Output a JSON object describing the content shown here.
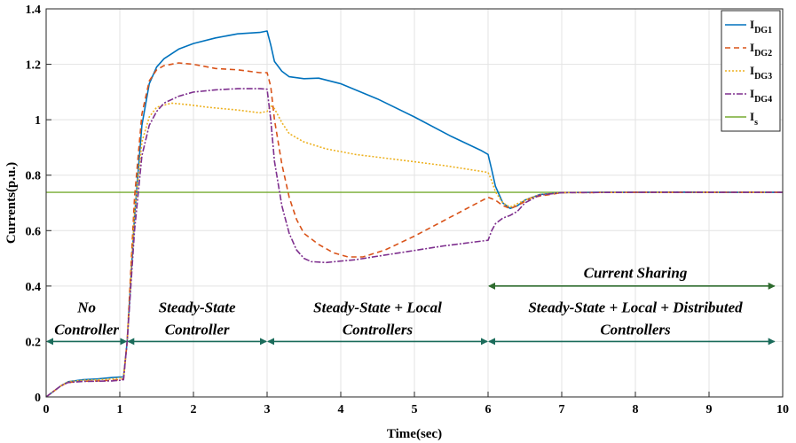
{
  "chart_data": {
    "type": "line",
    "xlabel": "Time(sec)",
    "ylabel": "Currents(p.u.)",
    "xlim": [
      0,
      10
    ],
    "ylim": [
      0,
      1.4
    ],
    "xticks": [
      "0",
      "1",
      "2",
      "3",
      "4",
      "5",
      "6",
      "7",
      "8",
      "9",
      "10"
    ],
    "yticks": [
      "0",
      "0.2",
      "0.4",
      "0.6",
      "0.8",
      "1",
      "1.2",
      "1.4"
    ],
    "grid": true,
    "legend": {
      "placement": "top-right"
    },
    "series": [
      {
        "name": "I",
        "sub": "DG1",
        "color": "#0072BD",
        "dash": "solid",
        "points": [
          [
            0,
            0
          ],
          [
            0.1,
            0.02
          ],
          [
            0.2,
            0.04
          ],
          [
            0.3,
            0.055
          ],
          [
            0.5,
            0.062
          ],
          [
            0.7,
            0.065
          ],
          [
            0.9,
            0.07
          ],
          [
            1.0,
            0.072
          ],
          [
            1.05,
            0.072
          ],
          [
            1.1,
            0.2
          ],
          [
            1.2,
            0.65
          ],
          [
            1.3,
            0.98
          ],
          [
            1.4,
            1.13
          ],
          [
            1.5,
            1.19
          ],
          [
            1.6,
            1.22
          ],
          [
            1.8,
            1.255
          ],
          [
            2.0,
            1.275
          ],
          [
            2.3,
            1.295
          ],
          [
            2.6,
            1.31
          ],
          [
            2.9,
            1.315
          ],
          [
            3.0,
            1.32
          ],
          [
            3.05,
            1.27
          ],
          [
            3.1,
            1.21
          ],
          [
            3.2,
            1.175
          ],
          [
            3.3,
            1.155
          ],
          [
            3.5,
            1.148
          ],
          [
            3.7,
            1.15
          ],
          [
            4.0,
            1.13
          ],
          [
            4.5,
            1.075
          ],
          [
            5.0,
            1.01
          ],
          [
            5.5,
            0.94
          ],
          [
            5.9,
            0.89
          ],
          [
            6.0,
            0.875
          ],
          [
            6.05,
            0.82
          ],
          [
            6.1,
            0.76
          ],
          [
            6.2,
            0.7
          ],
          [
            6.3,
            0.68
          ],
          [
            6.4,
            0.69
          ],
          [
            6.5,
            0.71
          ],
          [
            6.7,
            0.73
          ],
          [
            7.0,
            0.737
          ],
          [
            7.5,
            0.738
          ],
          [
            8.0,
            0.738
          ],
          [
            8.5,
            0.739
          ],
          [
            9.0,
            0.738
          ],
          [
            10,
            0.738
          ]
        ]
      },
      {
        "name": "I",
        "sub": "DG2",
        "color": "#D95319",
        "dash": "6,4",
        "points": [
          [
            0,
            0
          ],
          [
            0.1,
            0.02
          ],
          [
            0.2,
            0.04
          ],
          [
            0.3,
            0.052
          ],
          [
            0.5,
            0.057
          ],
          [
            0.7,
            0.058
          ],
          [
            0.9,
            0.06
          ],
          [
            1.0,
            0.062
          ],
          [
            1.05,
            0.065
          ],
          [
            1.1,
            0.2
          ],
          [
            1.2,
            0.72
          ],
          [
            1.3,
            1.02
          ],
          [
            1.4,
            1.14
          ],
          [
            1.5,
            1.18
          ],
          [
            1.6,
            1.195
          ],
          [
            1.8,
            1.205
          ],
          [
            2.0,
            1.2
          ],
          [
            2.3,
            1.185
          ],
          [
            2.6,
            1.18
          ],
          [
            2.9,
            1.17
          ],
          [
            3.0,
            1.17
          ],
          [
            3.05,
            1.12
          ],
          [
            3.1,
            1.0
          ],
          [
            3.2,
            0.84
          ],
          [
            3.3,
            0.72
          ],
          [
            3.4,
            0.64
          ],
          [
            3.5,
            0.59
          ],
          [
            3.7,
            0.55
          ],
          [
            3.9,
            0.52
          ],
          [
            4.1,
            0.505
          ],
          [
            4.3,
            0.505
          ],
          [
            4.6,
            0.53
          ],
          [
            5.0,
            0.58
          ],
          [
            5.5,
            0.65
          ],
          [
            6.0,
            0.72
          ],
          [
            6.1,
            0.71
          ],
          [
            6.2,
            0.69
          ],
          [
            6.3,
            0.68
          ],
          [
            6.4,
            0.69
          ],
          [
            6.6,
            0.72
          ],
          [
            7.0,
            0.737
          ],
          [
            8.0,
            0.738
          ],
          [
            9.0,
            0.738
          ],
          [
            10,
            0.738
          ]
        ]
      },
      {
        "name": "I",
        "sub": "DG3",
        "color": "#EDB120",
        "dash": "2,2",
        "points": [
          [
            0,
            0
          ],
          [
            0.1,
            0.02
          ],
          [
            0.2,
            0.04
          ],
          [
            0.3,
            0.055
          ],
          [
            0.5,
            0.06
          ],
          [
            0.7,
            0.062
          ],
          [
            0.9,
            0.065
          ],
          [
            1.0,
            0.068
          ],
          [
            1.05,
            0.07
          ],
          [
            1.1,
            0.2
          ],
          [
            1.2,
            0.66
          ],
          [
            1.3,
            0.92
          ],
          [
            1.4,
            1.01
          ],
          [
            1.5,
            1.045
          ],
          [
            1.7,
            1.06
          ],
          [
            1.9,
            1.055
          ],
          [
            2.2,
            1.045
          ],
          [
            2.6,
            1.035
          ],
          [
            2.9,
            1.025
          ],
          [
            3.0,
            1.03
          ],
          [
            3.05,
            1.05
          ],
          [
            3.1,
            1.04
          ],
          [
            3.2,
            0.99
          ],
          [
            3.3,
            0.95
          ],
          [
            3.5,
            0.92
          ],
          [
            3.8,
            0.895
          ],
          [
            4.2,
            0.875
          ],
          [
            4.8,
            0.855
          ],
          [
            5.4,
            0.835
          ],
          [
            6.0,
            0.81
          ],
          [
            6.05,
            0.78
          ],
          [
            6.1,
            0.74
          ],
          [
            6.2,
            0.7
          ],
          [
            6.3,
            0.685
          ],
          [
            6.5,
            0.71
          ],
          [
            6.7,
            0.73
          ],
          [
            7.0,
            0.737
          ],
          [
            8.0,
            0.738
          ],
          [
            9.0,
            0.738
          ],
          [
            10,
            0.738
          ]
        ]
      },
      {
        "name": "I",
        "sub": "DG4",
        "color": "#7E2F8E",
        "dash": "7,2,2,2",
        "points": [
          [
            0,
            0
          ],
          [
            0.1,
            0.02
          ],
          [
            0.2,
            0.04
          ],
          [
            0.3,
            0.052
          ],
          [
            0.5,
            0.056
          ],
          [
            0.7,
            0.057
          ],
          [
            0.9,
            0.058
          ],
          [
            1.0,
            0.06
          ],
          [
            1.05,
            0.062
          ],
          [
            1.1,
            0.2
          ],
          [
            1.2,
            0.6
          ],
          [
            1.3,
            0.87
          ],
          [
            1.4,
            0.98
          ],
          [
            1.5,
            1.03
          ],
          [
            1.6,
            1.06
          ],
          [
            1.8,
            1.085
          ],
          [
            2.0,
            1.1
          ],
          [
            2.3,
            1.108
          ],
          [
            2.6,
            1.112
          ],
          [
            2.9,
            1.112
          ],
          [
            3.0,
            1.11
          ],
          [
            3.05,
            1.0
          ],
          [
            3.1,
            0.85
          ],
          [
            3.2,
            0.69
          ],
          [
            3.3,
            0.59
          ],
          [
            3.4,
            0.53
          ],
          [
            3.5,
            0.5
          ],
          [
            3.6,
            0.488
          ],
          [
            3.8,
            0.485
          ],
          [
            4.2,
            0.495
          ],
          [
            4.8,
            0.52
          ],
          [
            5.4,
            0.545
          ],
          [
            6.0,
            0.565
          ],
          [
            6.05,
            0.6
          ],
          [
            6.1,
            0.625
          ],
          [
            6.2,
            0.645
          ],
          [
            6.3,
            0.655
          ],
          [
            6.4,
            0.67
          ],
          [
            6.5,
            0.7
          ],
          [
            6.7,
            0.728
          ],
          [
            7.0,
            0.737
          ],
          [
            8.0,
            0.738
          ],
          [
            9.0,
            0.738
          ],
          [
            10,
            0.738
          ]
        ]
      },
      {
        "name": "I",
        "sub": "s",
        "color": "#77AC30",
        "dash": "solid",
        "points": [
          [
            0,
            0.738
          ],
          [
            10,
            0.738
          ]
        ]
      }
    ],
    "annotations": [
      {
        "label": "No",
        "x": 0.55,
        "y": 0.305
      },
      {
        "label": "Controller",
        "x": 0.55,
        "y": 0.225
      },
      {
        "label": "Steady-State",
        "x": 2.05,
        "y": 0.305
      },
      {
        "label": "Controller",
        "x": 2.05,
        "y": 0.225
      },
      {
        "label": "Steady-State + Local",
        "x": 4.5,
        "y": 0.305
      },
      {
        "label": "Controllers",
        "x": 4.5,
        "y": 0.225
      },
      {
        "label": "Steady-State + Local + Distributed",
        "x": 8.0,
        "y": 0.305
      },
      {
        "label": "Controllers",
        "x": 8.0,
        "y": 0.225
      },
      {
        "label": "Current Sharing",
        "x": 8.0,
        "y": 0.43
      }
    ],
    "arrows": [
      {
        "x1": 0,
        "x2": 1.1,
        "y": 0.2,
        "color": "#1a6b5a"
      },
      {
        "x1": 1.1,
        "x2": 3.0,
        "y": 0.2,
        "color": "#1a6b5a"
      },
      {
        "x1": 3.0,
        "x2": 6.0,
        "y": 0.2,
        "color": "#1a6b5a"
      },
      {
        "x1": 6.0,
        "x2": 9.9,
        "y": 0.2,
        "color": "#1a6b5a"
      },
      {
        "x1": 6.0,
        "x2": 9.9,
        "y": 0.4,
        "color": "#2e6b2e"
      }
    ]
  }
}
